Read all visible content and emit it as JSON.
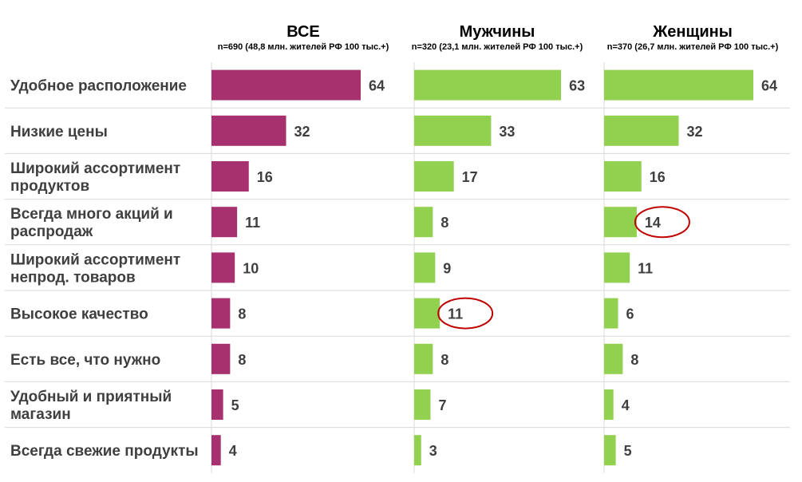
{
  "chart_data": {
    "type": "bar",
    "orientation": "horizontal",
    "categories": [
      [
        "Удобное расположение"
      ],
      [
        "Низкие цены"
      ],
      [
        "Широкий ассортимент",
        "продуктов"
      ],
      [
        "Всегда много акций и",
        "распродаж"
      ],
      [
        "Широкий ассортимент",
        "непрод. товаров"
      ],
      [
        "Высокое качество"
      ],
      [
        "Есть все, что нужно"
      ],
      [
        "Удобный и приятный",
        "магазин"
      ],
      [
        "Всегда свежие продукты"
      ]
    ],
    "xlim": [
      0,
      70
    ],
    "grid": false,
    "series": [
      {
        "name": "ВСЕ",
        "subtitle": "n=690 (48,8 млн. жителей РФ 100 тыс.+)",
        "color": "#a7306f",
        "values": [
          64,
          32,
          16,
          11,
          10,
          8,
          8,
          5,
          4
        ],
        "highlighted": []
      },
      {
        "name": "Мужчины",
        "subtitle": "n=320 (23,1 млн. жителей РФ 100 тыс.+)",
        "color": "#92d050",
        "values": [
          63,
          33,
          17,
          8,
          9,
          11,
          8,
          7,
          3
        ],
        "highlighted": [
          5
        ]
      },
      {
        "name": "Женщины",
        "subtitle": "n=370 (26,7 млн. жителей РФ 100 тыс.+)",
        "color": "#92d050",
        "values": [
          64,
          32,
          16,
          14,
          11,
          6,
          8,
          4,
          5
        ],
        "highlighted": [
          3
        ]
      }
    ],
    "colors": {
      "text": "#3f3f3f",
      "separator": "#d9d9d9",
      "highlight_ring": "#c00000"
    }
  }
}
